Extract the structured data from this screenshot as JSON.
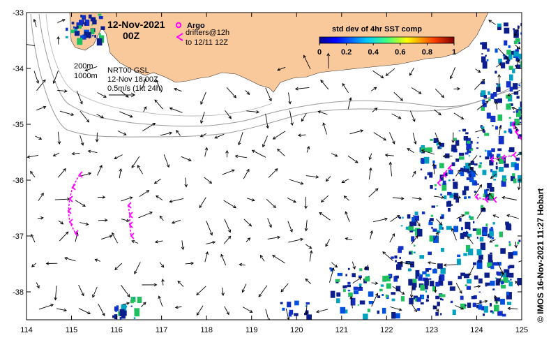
{
  "map": {
    "date_title": "12-Nov-2021",
    "hour": "00Z",
    "argo_label": "Argo",
    "drifters_label_line1": "drifters@12h",
    "drifters_label_line2": "to 12/11 12Z",
    "isobath_shallow": "200m",
    "isobath_deep": "1000m",
    "product_line1": "NRT00 GSL",
    "product_line2": "12-Nov 18:00Z",
    "product_line3": "0.5m/s (1kt 24h)",
    "credit": "© IMOS 16-Nov-2021 11:27 Hobart",
    "colors": {
      "land": "#f9c89b",
      "ocean": "#ffffff",
      "drifter": "#ff00ff",
      "contour": "#9a9a9a",
      "sst_patch": "#0b1e8c"
    },
    "lon_ticks": [
      "114",
      "115",
      "116",
      "117",
      "118",
      "119",
      "120",
      "121",
      "122",
      "123",
      "124",
      "125"
    ],
    "lat_ticks": [
      "-33",
      "-34",
      "-35",
      "-36",
      "-37",
      "-38"
    ],
    "lon_range": [
      114,
      125
    ],
    "lat_range": [
      -38.5,
      -33
    ]
  },
  "colorbar": {
    "title": "std dev of 4hr SST comp",
    "ticks": [
      "0",
      "0.2",
      "0.4",
      "0.6",
      "0.8",
      "1"
    ],
    "range": [
      0,
      1
    ]
  }
}
